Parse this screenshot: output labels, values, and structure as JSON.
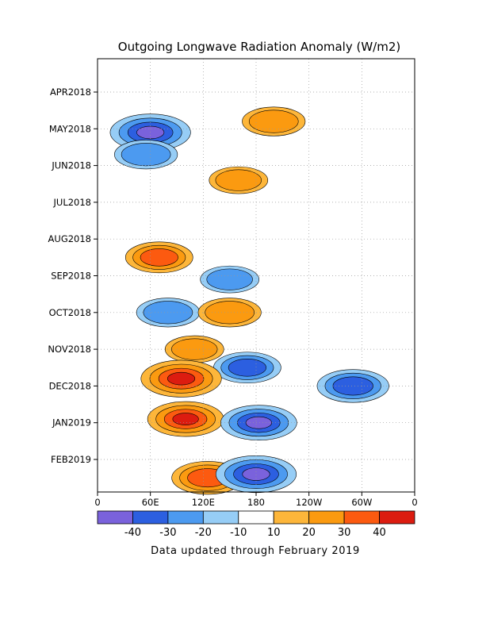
{
  "chart_data": {
    "type": "heatmap",
    "title": "Outgoing Longwave Radiation Anomaly (W/m2)",
    "footer": "Data updated through February 2019",
    "x_ticks": [
      "0",
      "60E",
      "120E",
      "180",
      "120W",
      "60W",
      "0"
    ],
    "y_ticks": [
      "APR2018",
      "MAY2018",
      "JUN2018",
      "JUL2018",
      "AUG2018",
      "SEP2018",
      "OCT2018",
      "NOV2018",
      "DEC2018",
      "JAN2019",
      "FEB2019"
    ],
    "colorbar": {
      "labels": [
        "-40",
        "-30",
        "-20",
        "-10",
        "10",
        "20",
        "30",
        "40"
      ],
      "colors": [
        "#7a62dc",
        "#2c5fe0",
        "#4c9af0",
        "#96cdf6",
        "#ffffff",
        "#fdb63a",
        "#fb9a10",
        "#fc5a10",
        "#dc1c10"
      ]
    },
    "grid": true,
    "features": [
      {
        "name": "enhanced-convection-indian-ocean-may",
        "lon": 60,
        "month": 1.1,
        "value": -45
      },
      {
        "name": "enhanced-convection-indian-ocean-jun",
        "lon": 55,
        "month": 1.7,
        "value": -25
      },
      {
        "name": "suppressed-central-pacific-spring",
        "lon": 200,
        "month": 0.8,
        "value": 25
      },
      {
        "name": "suppressed-west-pacific-jun",
        "lon": 160,
        "month": 2.4,
        "value": 20
      },
      {
        "name": "suppressed-maritime-aug",
        "lon": 70,
        "month": 4.5,
        "value": 30
      },
      {
        "name": "enhanced-west-pacific-sep",
        "lon": 150,
        "month": 5.1,
        "value": -20
      },
      {
        "name": "enhanced-indian-ocean-oct",
        "lon": 80,
        "month": 6.0,
        "value": -25
      },
      {
        "name": "suppressed-west-pacific-oct",
        "lon": 150,
        "month": 6.0,
        "value": 25
      },
      {
        "name": "suppressed-maritime-nov",
        "lon": 110,
        "month": 7.0,
        "value": 20
      },
      {
        "name": "enhanced-dateline-nov",
        "lon": 170,
        "month": 7.5,
        "value": -30
      },
      {
        "name": "suppressed-maritime-dec",
        "lon": 95,
        "month": 7.8,
        "value": 45
      },
      {
        "name": "enhanced-east-pacific-dec",
        "lon": 290,
        "month": 8.0,
        "value": -35
      },
      {
        "name": "suppressed-maritime-jan",
        "lon": 100,
        "month": 8.9,
        "value": 40
      },
      {
        "name": "enhanced-dateline-jan",
        "lon": 183,
        "month": 9.0,
        "value": -40
      },
      {
        "name": "suppressed-maritime-feb",
        "lon": 125,
        "month": 10.5,
        "value": 35
      },
      {
        "name": "enhanced-dateline-feb",
        "lon": 180,
        "month": 10.4,
        "value": -45
      }
    ]
  }
}
